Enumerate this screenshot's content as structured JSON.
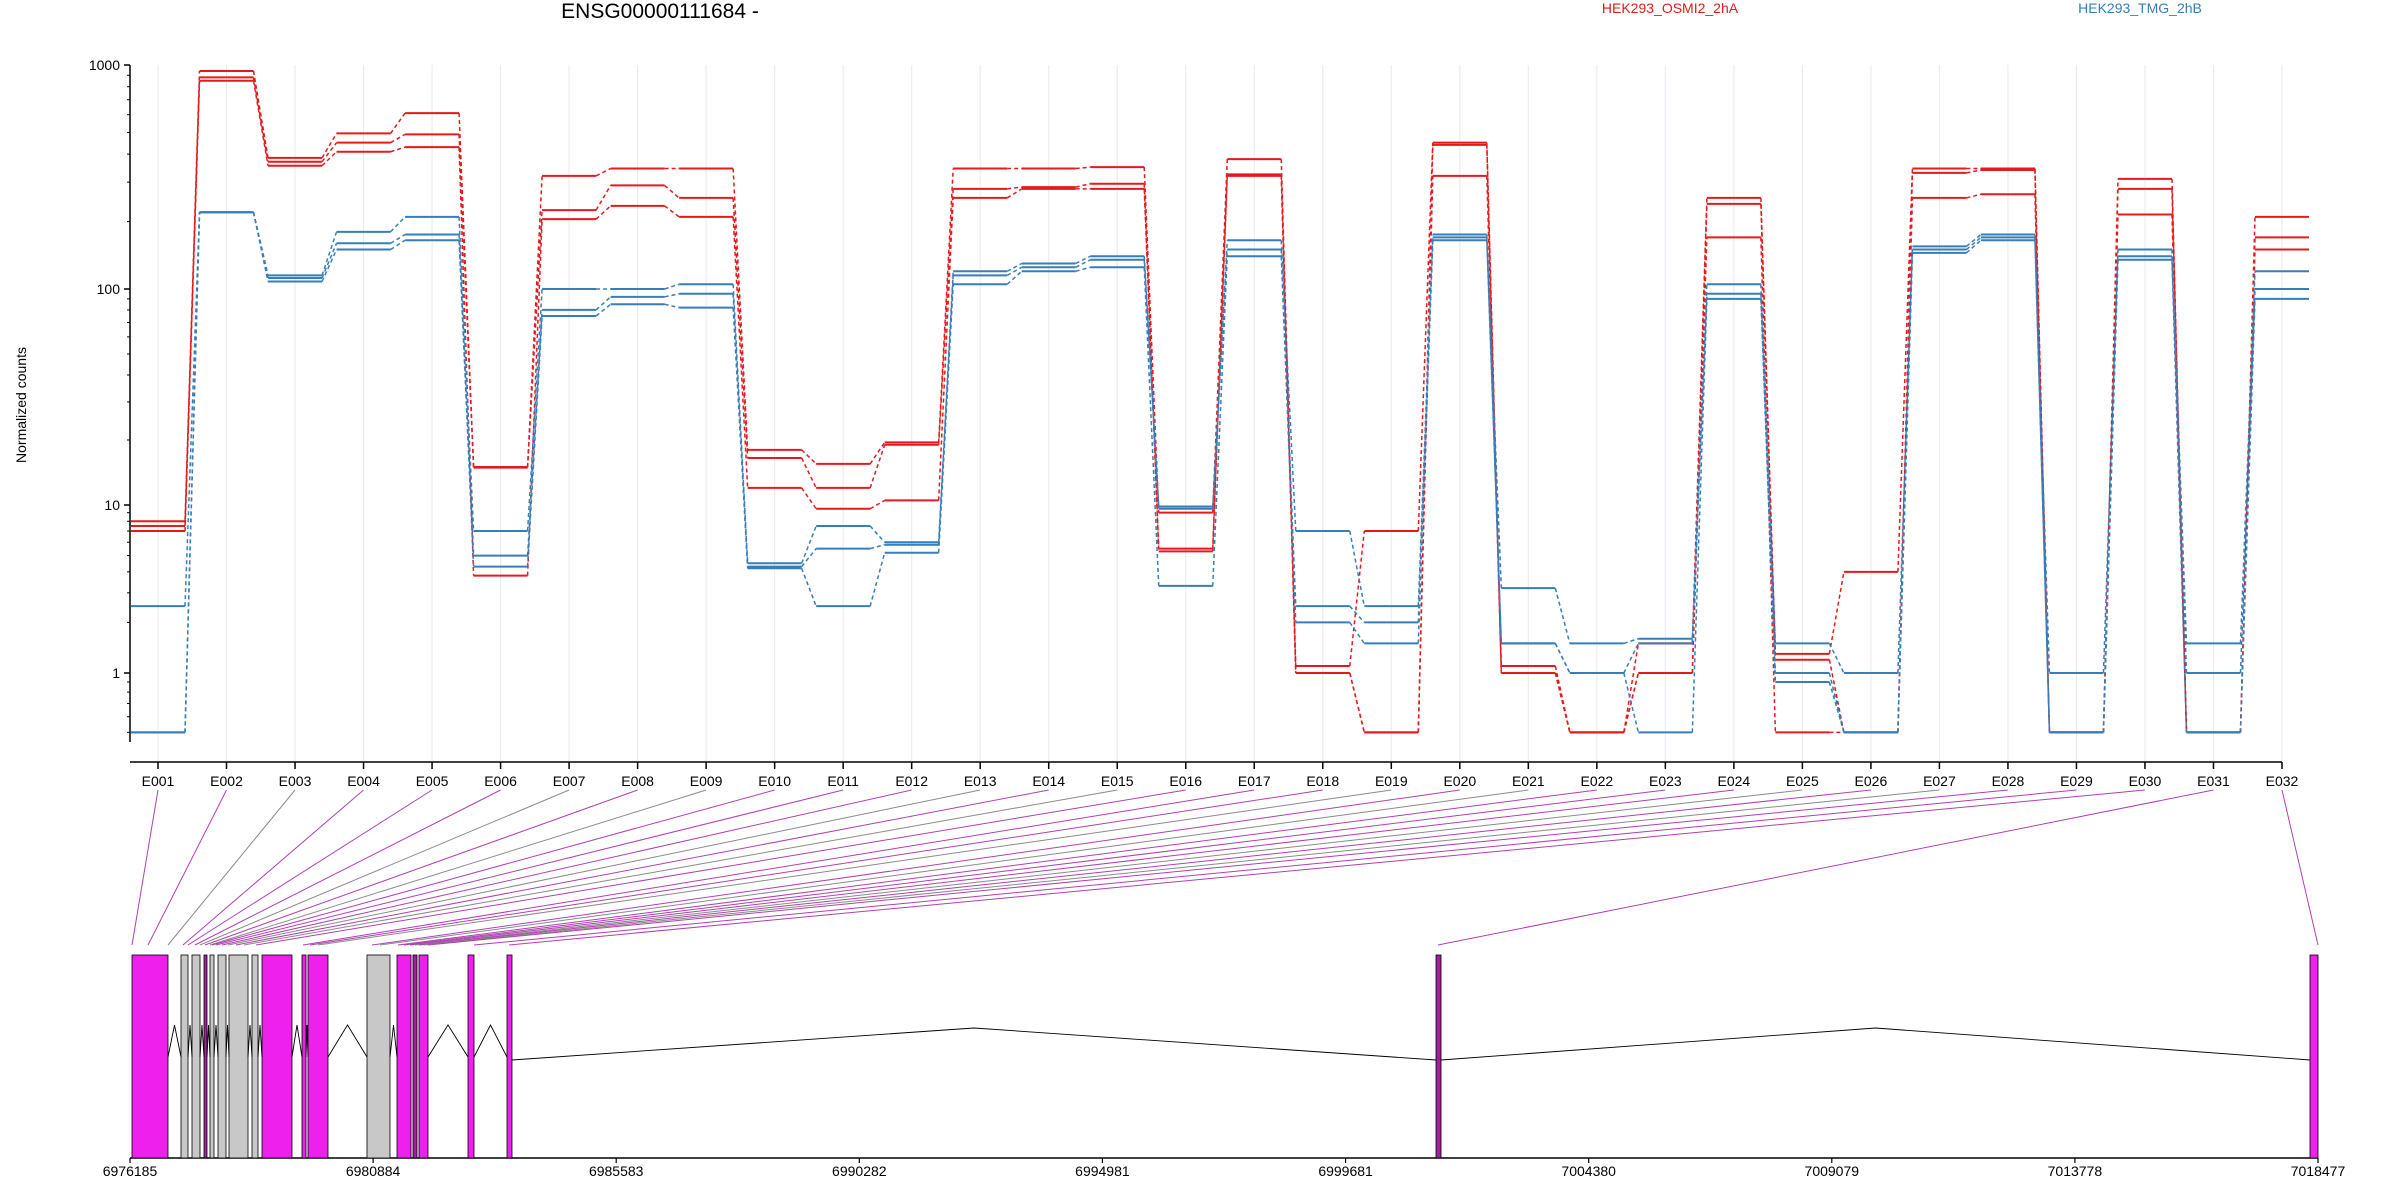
{
  "chart_data": [
    {
      "type": "line",
      "title": "ENSG00000111684 -",
      "xlabel": "",
      "ylabel": "Normalized counts",
      "yscale": "log",
      "ylim": [
        0.45,
        1000
      ],
      "ytick_labels": [
        "1",
        "10",
        "100",
        "1000"
      ],
      "ytick_values": [
        1,
        10,
        100,
        1000
      ],
      "grid": "vertical light lines at each exon",
      "legend_position": "top, outside plot",
      "legend": [
        "HEK293_OSMI2_2hA",
        "HEK293_TMG_2hB"
      ],
      "categories": [
        "E001",
        "E002",
        "E003",
        "E004",
        "E005",
        "E006",
        "E007",
        "E008",
        "E009",
        "E010",
        "E011",
        "E012",
        "E013",
        "E014",
        "E015",
        "E016",
        "E017",
        "E018",
        "E019",
        "E020",
        "E021",
        "E022",
        "E023",
        "E024",
        "E025",
        "E026",
        "E027",
        "E028",
        "E029",
        "E030",
        "E031",
        "E032"
      ],
      "series": [
        {
          "group": "HEK293_OSMI2_2hA",
          "color": "#e41a1c",
          "values": [
            8.0,
            940,
            385,
            495,
            610,
            15,
            320,
            345,
            345,
            18,
            15.5,
            19.5,
            345,
            345,
            350,
            9,
            380,
            1.1,
            7,
            450,
            1.1,
            0.5,
            1.5,
            255,
            1.3,
            4,
            345,
            345,
            0.5,
            310,
            0.5,
            210
          ]
        },
        {
          "group": "HEK293_OSMI2_2hA",
          "color": "#e41a1c",
          "values": [
            7.5,
            880,
            370,
            450,
            490,
            14.9,
            225,
            290,
            255,
            16.5,
            12,
            19,
            280,
            285,
            295,
            5.5,
            325,
            1.0,
            0.5,
            440,
            1.0,
            0.5,
            1.0,
            240,
            1.2,
            0.5,
            330,
            340,
            0.5,
            280,
            0.5,
            170
          ]
        },
        {
          "group": "HEK293_OSMI2_2hA",
          "color": "#e41a1c",
          "values": [
            7.0,
            850,
            355,
            410,
            430,
            3.8,
            205,
            235,
            210,
            12,
            9.5,
            10.5,
            255,
            280,
            280,
            5.3,
            320,
            1.0,
            0.5,
            320,
            1.0,
            0.5,
            1.0,
            170,
            0.5,
            0.5,
            255,
            265,
            0.5,
            215,
            0.5,
            150
          ]
        },
        {
          "group": "HEK293_TMG_2hB",
          "color": "#377eb8",
          "values": [
            2.5,
            220,
            115,
            180,
            210,
            7,
            100,
            100,
            105,
            4.5,
            7.5,
            6,
            120,
            130,
            140,
            9.8,
            165,
            7,
            2.5,
            175,
            3.2,
            1.5,
            1.6,
            105,
            1.5,
            1.0,
            155,
            175,
            1.0,
            150,
            1.5,
            120
          ]
        },
        {
          "group": "HEK293_TMG_2hB",
          "color": "#377eb8",
          "values": [
            0.5,
            220,
            112,
            160,
            175,
            5,
            80,
            92,
            95,
            4.3,
            5.5,
            5.8,
            115,
            125,
            135,
            9.5,
            150,
            2.5,
            2.0,
            170,
            1.5,
            1.0,
            1.5,
            95,
            1.0,
            0.5,
            150,
            170,
            0.5,
            140,
            1.0,
            100
          ]
        },
        {
          "group": "HEK293_TMG_2hB",
          "color": "#377eb8",
          "values": [
            0.5,
            220,
            108,
            150,
            165,
            4.3,
            75,
            85,
            82,
            4.2,
            2.5,
            5.2,
            105,
            120,
            125,
            3.3,
            140,
            2.0,
            1.5,
            165,
            1.5,
            1.0,
            0.5,
            90,
            0.9,
            0.5,
            145,
            165,
            0.5,
            135,
            0.5,
            90
          ]
        }
      ]
    },
    {
      "type": "gene-model",
      "xtick_labels": [
        "6976185",
        "6980884",
        "6985583",
        "6990282",
        "6994981",
        "6999681",
        "7004380",
        "7009079",
        "7013778",
        "7018477"
      ],
      "xlim": [
        6976185,
        7018477
      ],
      "exon_colors": {
        "highlighted": "#ee20ee",
        "highlighted_dark": "#a020a0",
        "other": "#c8c8c8"
      }
    }
  ]
}
